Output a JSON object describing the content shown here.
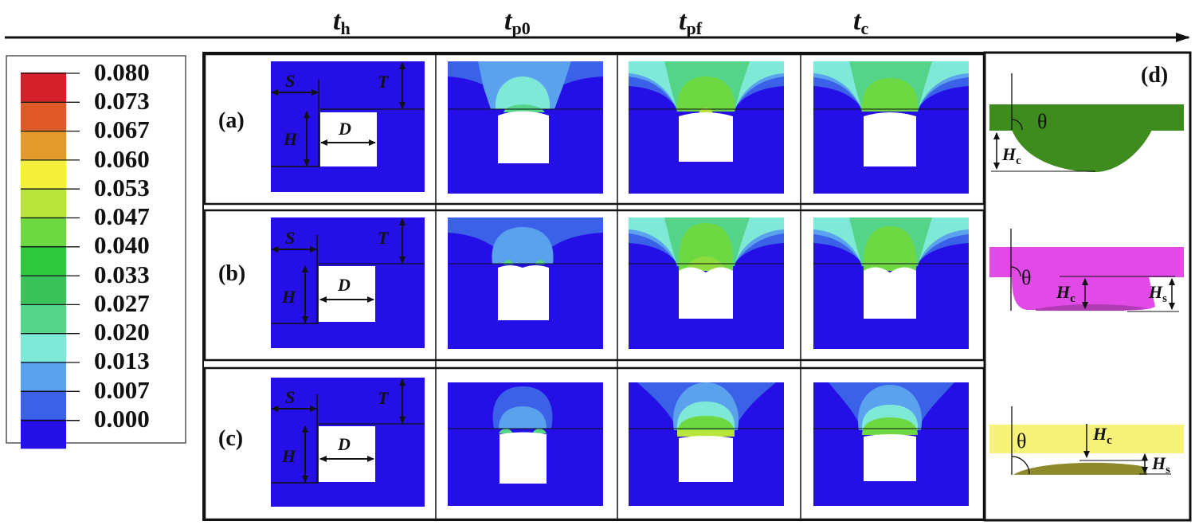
{
  "timeline": {
    "labels": [
      {
        "main": "t",
        "sub": "h"
      },
      {
        "main": "t",
        "sub": "p0"
      },
      {
        "main": "t",
        "sub": "pf"
      },
      {
        "main": "t",
        "sub": "c"
      }
    ]
  },
  "legend": {
    "values": [
      "0.080",
      "0.073",
      "0.067",
      "0.060",
      "0.053",
      "0.047",
      "0.040",
      "0.033",
      "0.027",
      "0.020",
      "0.013",
      "0.007",
      "0.000"
    ],
    "colors": [
      "#d4202a",
      "#df5a26",
      "#e49a2a",
      "#f4ef3a",
      "#b8e43c",
      "#6ed843",
      "#2fc93f",
      "#39c35a",
      "#54d489",
      "#7fe9d8",
      "#5aa2ee",
      "#3a61e8",
      "#2410e6"
    ]
  },
  "rows": [
    {
      "label": "(a)",
      "geom": {
        "S": "S",
        "T": "T",
        "H": "H",
        "D": "D"
      }
    },
    {
      "label": "(b)",
      "geom": {
        "S": "S",
        "T": "T",
        "H": "H",
        "D": "D"
      }
    },
    {
      "label": "(c)",
      "geom": {
        "S": "S",
        "T": "T",
        "H": "H",
        "D": "D"
      }
    }
  ],
  "panel_d": {
    "label": "(d)",
    "theta": "θ",
    "Hc": {
      "main": "H",
      "sub": "c"
    },
    "Hs": {
      "main": "H",
      "sub": "s"
    },
    "colors": {
      "green": "#3f8c1e",
      "magenta": "#e14ae6",
      "yellow": "#f6f27a",
      "olive": "#8c8a2a"
    }
  },
  "colors": {
    "background_field": "#2410e6"
  }
}
